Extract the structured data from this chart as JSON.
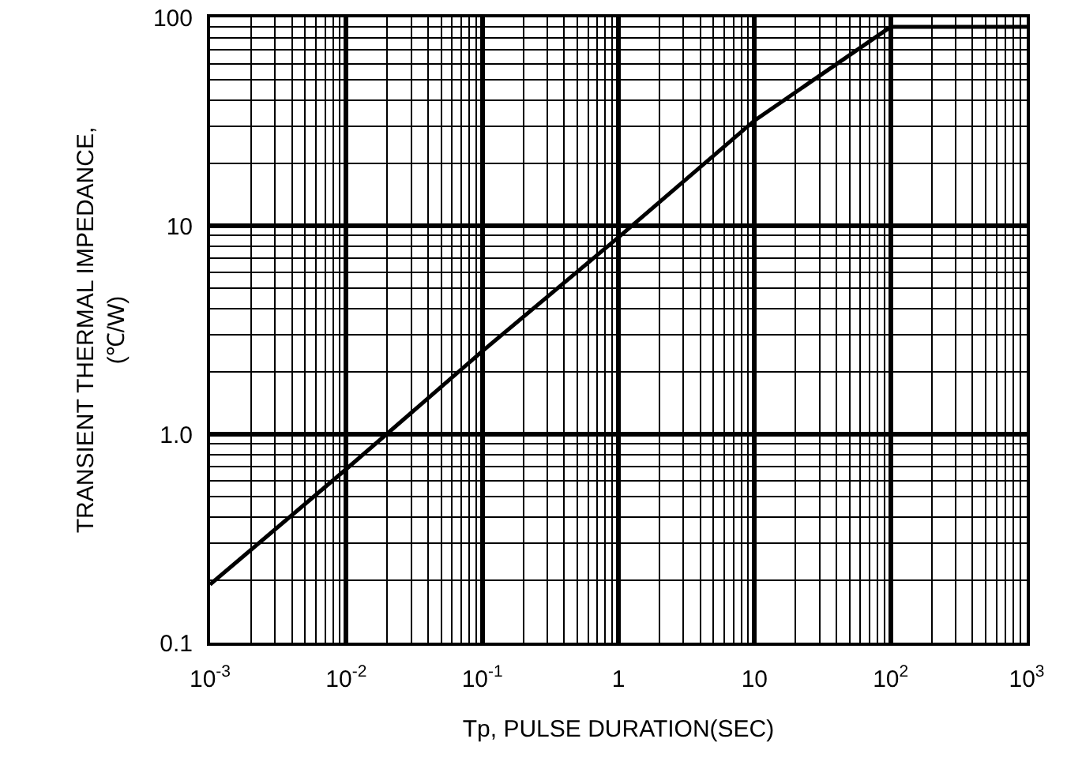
{
  "chart_data": {
    "type": "line",
    "xlabel": "Tp, PULSE DURATION(SEC)",
    "ylabel": "TRANSIENT THERMAL IMPEDANCE,\n(℃/W)",
    "x": [
      0.001,
      0.01,
      0.1,
      1,
      10,
      100,
      1000
    ],
    "series": [
      {
        "color": "#000000",
        "values": [
          0.19,
          0.68,
          2.5,
          8.8,
          32,
          90,
          90
        ]
      }
    ],
    "log": "xy",
    "grid": true,
    "marker": "none",
    "line_style": "solid",
    "xlim": [
      0.001,
      1000
    ],
    "ylim": [
      0.1,
      100
    ],
    "xticks": [
      {
        "value": 0.001,
        "label": "10$^{-3}$"
      },
      {
        "value": 0.01,
        "label": "10$^{-2}$"
      },
      {
        "value": 0.1,
        "label": "10$^{-1}$"
      },
      1,
      10,
      {
        "value": 100,
        "label": "10$^{2}$"
      },
      {
        "value": 1000,
        "label": "10$^{3}$"
      }
    ],
    "yticks": [
      0.1,
      {
        "value": 1,
        "label": "1.0"
      },
      10,
      100
    ]
  }
}
